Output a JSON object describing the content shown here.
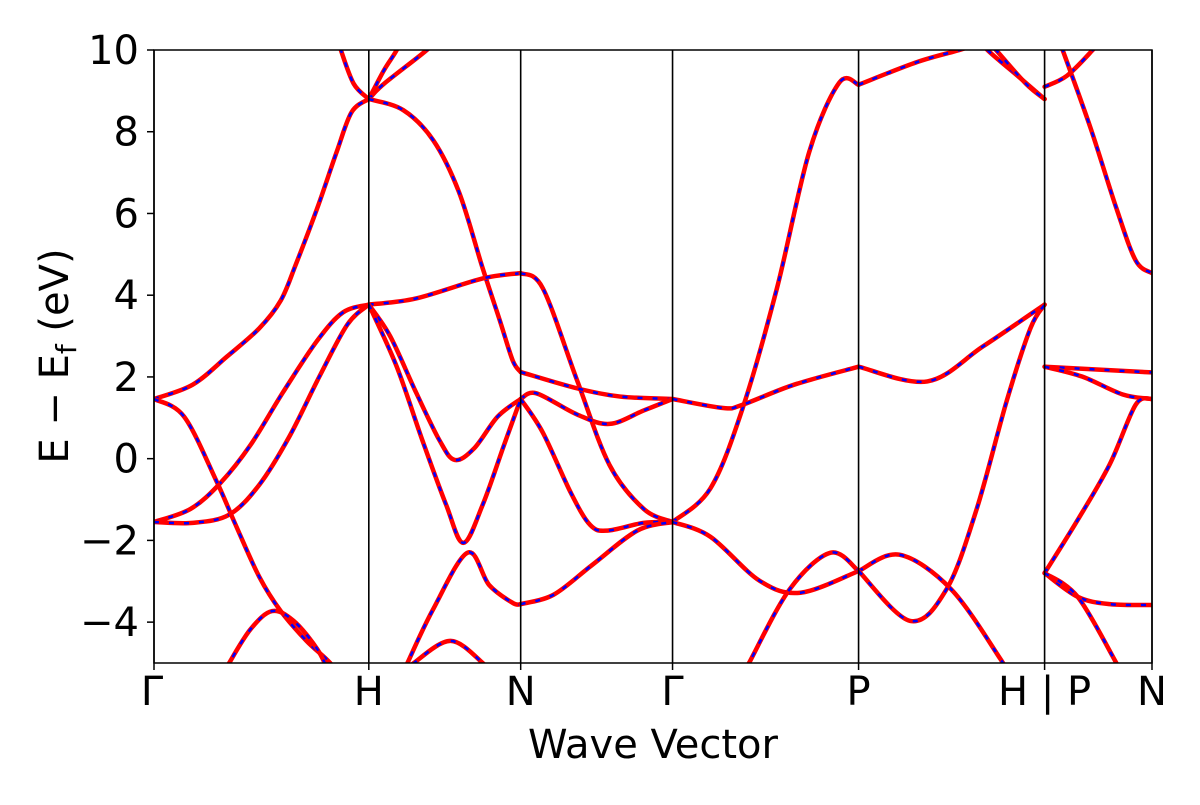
{
  "chart_data": {
    "type": "line",
    "title": "",
    "xlabel": "Wave Vector",
    "ylabel_main": "E − E",
    "ylabel_sub": "f",
    "ylabel_unit": " (eV)",
    "xlim": [
      0,
      4.646
    ],
    "ylim": [
      -5,
      10
    ],
    "yticks": [
      -4,
      -2,
      0,
      2,
      4,
      6,
      8,
      10
    ],
    "ytick_labels": [
      "−4",
      "−2",
      "0",
      "2",
      "4",
      "6",
      "8",
      "10"
    ],
    "kpoints": [
      {
        "label": "Γ",
        "k": 0
      },
      {
        "label": "H",
        "k": 1.0
      },
      {
        "label": "N",
        "k": 1.707
      },
      {
        "label": "Γ",
        "k": 2.414
      },
      {
        "label": "P",
        "k": 3.28
      },
      {
        "label": "H | P",
        "k": 4.146
      },
      {
        "label": "N",
        "k": 4.646
      }
    ],
    "series_styles": [
      {
        "name": "red-solid",
        "color": "#ff0000"
      },
      {
        "name": "blue-dashed",
        "color": "#0000ff"
      }
    ],
    "bands": [
      [
        [
          0,
          1.46
        ],
        [
          0.18,
          1.81
        ],
        [
          0.34,
          2.5
        ],
        [
          0.49,
          3.19
        ],
        [
          0.59,
          3.87
        ],
        [
          0.66,
          4.75
        ],
        [
          0.76,
          6.13
        ],
        [
          0.85,
          7.5
        ],
        [
          0.92,
          8.48
        ],
        [
          1.0,
          8.8
        ]
      ],
      [
        [
          0,
          -1.55
        ],
        [
          0.17,
          -1.23
        ],
        [
          0.31,
          -0.59
        ],
        [
          0.45,
          0.34
        ],
        [
          0.6,
          1.62
        ],
        [
          0.76,
          2.89
        ],
        [
          0.88,
          3.58
        ],
        [
          1.0,
          3.77
        ]
      ],
      [
        [
          0,
          -1.55
        ],
        [
          0.18,
          -1.57
        ],
        [
          0.35,
          -1.37
        ],
        [
          0.49,
          -0.64
        ],
        [
          0.63,
          0.54
        ],
        [
          0.77,
          2.01
        ],
        [
          0.9,
          3.28
        ],
        [
          1.0,
          3.77
        ]
      ],
      [
        [
          0,
          1.46
        ],
        [
          0.14,
          1.03
        ],
        [
          0.29,
          -0.54
        ],
        [
          0.38,
          -1.62
        ],
        [
          0.49,
          -2.89
        ],
        [
          0.59,
          -3.73
        ],
        [
          0.71,
          -4.46
        ],
        [
          0.82,
          -5.0
        ],
        [
          0.86,
          -5.4
        ]
      ],
      [
        [
          0.3,
          -5.5
        ],
        [
          0.35,
          -5.0
        ],
        [
          0.45,
          -4.17
        ],
        [
          0.55,
          -3.73
        ],
        [
          0.65,
          -3.97
        ],
        [
          0.76,
          -4.66
        ],
        [
          0.82,
          -5.3
        ]
      ],
      [
        [
          0.85,
          10.4
        ],
        [
          0.87,
          10.0
        ],
        [
          0.93,
          9.17
        ],
        [
          1.0,
          8.8
        ]
      ],
      [
        [
          1.0,
          8.8
        ],
        [
          1.07,
          9.5
        ],
        [
          1.13,
          10.0
        ],
        [
          1.16,
          10.4
        ]
      ],
      [
        [
          1.0,
          8.8
        ],
        [
          1.07,
          9.17
        ],
        [
          1.27,
          10.0
        ],
        [
          1.32,
          10.3
        ]
      ],
      [
        [
          1.0,
          8.8
        ],
        [
          1.16,
          8.53
        ],
        [
          1.3,
          7.79
        ],
        [
          1.42,
          6.52
        ],
        [
          1.53,
          4.66
        ],
        [
          1.61,
          3.38
        ],
        [
          1.67,
          2.4
        ],
        [
          1.707,
          2.12
        ]
      ],
      [
        [
          1.0,
          3.77
        ],
        [
          1.22,
          3.92
        ],
        [
          1.53,
          4.41
        ],
        [
          1.707,
          4.54
        ]
      ],
      [
        [
          1.0,
          3.77
        ],
        [
          1.1,
          2.99
        ],
        [
          1.22,
          1.62
        ],
        [
          1.33,
          0.44
        ],
        [
          1.4,
          -0.03
        ],
        [
          1.49,
          0.25
        ],
        [
          1.6,
          1.03
        ],
        [
          1.707,
          1.46
        ]
      ],
      [
        [
          1.0,
          3.77
        ],
        [
          1.13,
          2.25
        ],
        [
          1.25,
          0.44
        ],
        [
          1.36,
          -1.13
        ],
        [
          1.44,
          -2.06
        ],
        [
          1.53,
          -1.13
        ],
        [
          1.63,
          0.34
        ],
        [
          1.707,
          1.46
        ]
      ],
      [
        [
          1.14,
          -5.5
        ],
        [
          1.18,
          -5.0
        ],
        [
          1.3,
          -3.68
        ],
        [
          1.46,
          -2.3
        ],
        [
          1.56,
          -3.09
        ],
        [
          1.67,
          -3.53
        ],
        [
          1.707,
          -3.56
        ]
      ],
      [
        [
          1.16,
          -5.3
        ],
        [
          1.21,
          -5.0
        ],
        [
          1.38,
          -4.46
        ],
        [
          1.53,
          -5.0
        ],
        [
          1.57,
          -5.3
        ]
      ],
      [
        [
          1.707,
          4.54
        ],
        [
          1.81,
          4.17
        ],
        [
          1.97,
          1.91
        ],
        [
          2.12,
          -0.15
        ],
        [
          2.28,
          -1.23
        ],
        [
          2.414,
          -1.55
        ]
      ],
      [
        [
          1.707,
          2.12
        ],
        [
          1.97,
          1.72
        ],
        [
          2.17,
          1.52
        ],
        [
          2.414,
          1.46
        ]
      ],
      [
        [
          1.707,
          1.46
        ],
        [
          1.78,
          1.6
        ],
        [
          1.97,
          1.08
        ],
        [
          2.12,
          0.85
        ],
        [
          2.28,
          1.18
        ],
        [
          2.414,
          1.46
        ]
      ],
      [
        [
          1.707,
          1.46
        ],
        [
          1.81,
          0.64
        ],
        [
          1.94,
          -0.83
        ],
        [
          2.03,
          -1.62
        ],
        [
          2.11,
          -1.76
        ],
        [
          2.28,
          -1.57
        ],
        [
          2.414,
          -1.55
        ]
      ],
      [
        [
          1.707,
          -3.56
        ],
        [
          1.86,
          -3.33
        ],
        [
          2.04,
          -2.6
        ],
        [
          2.25,
          -1.76
        ],
        [
          2.414,
          -1.55
        ]
      ],
      [
        [
          2.414,
          -1.55
        ],
        [
          2.59,
          -0.73
        ],
        [
          2.74,
          1.23
        ],
        [
          2.9,
          4.17
        ],
        [
          3.05,
          7.5
        ],
        [
          3.19,
          9.2
        ],
        [
          3.28,
          9.15
        ]
      ],
      [
        [
          2.414,
          1.46
        ],
        [
          2.65,
          1.24
        ],
        [
          2.74,
          1.32
        ],
        [
          2.98,
          1.81
        ],
        [
          3.28,
          2.25
        ]
      ],
      [
        [
          2.414,
          -1.55
        ],
        [
          2.59,
          -1.91
        ],
        [
          2.82,
          -2.99
        ],
        [
          3.01,
          -3.28
        ],
        [
          3.28,
          -2.75
        ]
      ],
      [
        [
          2.72,
          -5.5
        ],
        [
          2.77,
          -5.0
        ],
        [
          2.96,
          -3.19
        ],
        [
          3.15,
          -2.3
        ],
        [
          3.28,
          -2.75
        ]
      ],
      [
        [
          3.28,
          9.15
        ],
        [
          3.55,
          9.7
        ],
        [
          3.75,
          10.0
        ],
        [
          3.8,
          10.1
        ]
      ],
      [
        [
          3.84,
          10.3
        ],
        [
          3.88,
          10.0
        ],
        [
          4.02,
          9.37
        ],
        [
          4.146,
          8.8
        ]
      ],
      [
        [
          3.87,
          10.3
        ],
        [
          3.92,
          10.0
        ],
        [
          4.06,
          9.17
        ],
        [
          4.146,
          8.8
        ]
      ],
      [
        [
          3.28,
          2.25
        ],
        [
          3.6,
          1.89
        ],
        [
          3.86,
          2.75
        ],
        [
          4.146,
          3.77
        ]
      ],
      [
        [
          3.28,
          -2.75
        ],
        [
          3.47,
          -2.35
        ],
        [
          3.71,
          -3.19
        ],
        [
          3.94,
          -4.9
        ],
        [
          3.99,
          -5.4
        ]
      ],
      [
        [
          3.28,
          -2.75
        ],
        [
          3.52,
          -3.97
        ],
        [
          3.69,
          -3.19
        ],
        [
          3.83,
          -1.23
        ],
        [
          3.97,
          1.42
        ],
        [
          4.08,
          3.19
        ],
        [
          4.146,
          3.77
        ]
      ],
      [
        [
          4.146,
          9.1
        ],
        [
          4.25,
          9.37
        ],
        [
          4.37,
          10.0
        ],
        [
          4.4,
          10.2
        ]
      ],
      [
        [
          4.2,
          10.4
        ],
        [
          4.23,
          10.0
        ],
        [
          4.36,
          8.09
        ],
        [
          4.48,
          6.13
        ],
        [
          4.57,
          4.85
        ],
        [
          4.646,
          4.54
        ]
      ],
      [
        [
          4.146,
          2.25
        ],
        [
          4.646,
          2.11
        ]
      ],
      [
        [
          4.146,
          2.25
        ],
        [
          4.32,
          2.01
        ],
        [
          4.51,
          1.57
        ],
        [
          4.646,
          1.46
        ]
      ],
      [
        [
          4.146,
          -2.8
        ],
        [
          4.3,
          -1.5
        ],
        [
          4.45,
          -0.13
        ],
        [
          4.57,
          1.32
        ],
        [
          4.646,
          1.46
        ]
      ],
      [
        [
          4.146,
          -2.8
        ],
        [
          4.3,
          -3.38
        ],
        [
          4.45,
          -3.56
        ],
        [
          4.646,
          -3.58
        ]
      ],
      [
        [
          4.146,
          -2.8
        ],
        [
          4.3,
          -3.38
        ],
        [
          4.48,
          -5.0
        ],
        [
          4.52,
          -5.4
        ]
      ]
    ]
  }
}
